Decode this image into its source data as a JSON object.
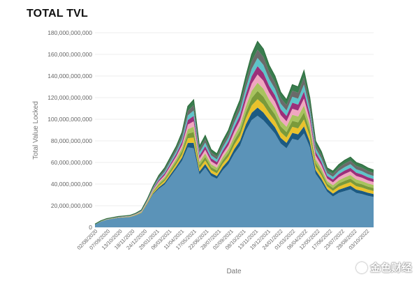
{
  "chart_data": {
    "type": "area",
    "title": "TOTAL TVL",
    "xlabel": "Date",
    "ylabel": "Total Value Locked",
    "ylim": [
      0,
      180000000000
    ],
    "y_ticks": [
      0,
      20000000000,
      40000000000,
      60000000000,
      80000000000,
      100000000000,
      120000000000,
      140000000000,
      160000000000,
      180000000000
    ],
    "y_tick_labels": [
      "0",
      "20,000,000,000",
      "40,000,000,000",
      "60,000,000,000",
      "80,000,000,000",
      "100,000,000,000",
      "120,000,000,000",
      "140,000,000,000",
      "160,000,000,000",
      "180,000,000,000"
    ],
    "x_tick_labels": [
      "02/08/2020",
      "07/09/2020",
      "13/10/2020",
      "18/11/2020",
      "24/12/2020",
      "29/01/2021",
      "06/03/2021",
      "11/04/2021",
      "17/05/2021",
      "22/06/2021",
      "28/07/2021",
      "02/09/2021",
      "08/10/2021",
      "13/11/2021",
      "19/12/2021",
      "24/01/2022",
      "01/03/2022",
      "06/04/2022",
      "12/05/2022",
      "17/06/2022",
      "23/07/2022",
      "28/08/2022",
      "03/10/2022"
    ],
    "grid": true,
    "legend": "none",
    "stack_colors": [
      "#5b93b8",
      "#1c5a82",
      "#e9c22c",
      "#7a9a3a",
      "#a8c35e",
      "#f0a7c0",
      "#9c2f7a",
      "#5ec4c9",
      "#6a6a6a",
      "#3a7d4f"
    ],
    "x": [
      "02/08/2020",
      "20/08/2020",
      "07/09/2020",
      "25/09/2020",
      "13/10/2020",
      "31/10/2020",
      "18/11/2020",
      "06/12/2020",
      "24/12/2020",
      "11/01/2021",
      "29/01/2021",
      "16/02/2021",
      "06/03/2021",
      "24/03/2021",
      "11/04/2021",
      "29/04/2021",
      "08/05/2021",
      "17/05/2021",
      "26/05/2021",
      "04/06/2021",
      "22/06/2021",
      "10/07/2021",
      "28/07/2021",
      "15/08/2021",
      "02/09/2021",
      "20/09/2021",
      "08/10/2021",
      "26/10/2021",
      "13/11/2021",
      "01/12/2021",
      "19/12/2021",
      "06/01/2022",
      "24/01/2022",
      "11/02/2022",
      "01/03/2022",
      "19/03/2022",
      "06/04/2022",
      "24/04/2022",
      "12/05/2022",
      "30/05/2022",
      "17/06/2022",
      "05/07/2022",
      "23/07/2022",
      "10/08/2022",
      "28/08/2022",
      "15/09/2022",
      "03/10/2022",
      "21/10/2022",
      "31/10/2022"
    ],
    "total_values": [
      3000000000,
      6000000000,
      8000000000,
      9000000000,
      10000000000,
      10500000000,
      11000000000,
      13000000000,
      16000000000,
      26000000000,
      38000000000,
      48000000000,
      55000000000,
      65000000000,
      75000000000,
      88000000000,
      112000000000,
      118000000000,
      75000000000,
      85000000000,
      72000000000,
      68000000000,
      80000000000,
      90000000000,
      105000000000,
      118000000000,
      140000000000,
      160000000000,
      172000000000,
      165000000000,
      150000000000,
      140000000000,
      125000000000,
      118000000000,
      132000000000,
      130000000000,
      145000000000,
      120000000000,
      80000000000,
      70000000000,
      55000000000,
      52000000000,
      58000000000,
      62000000000,
      65000000000,
      60000000000,
      58000000000,
      55000000000,
      53000000000
    ],
    "base_share": [
      0.85,
      0.86,
      0.86,
      0.86,
      0.86,
      0.86,
      0.86,
      0.84,
      0.82,
      0.82,
      0.8,
      0.74,
      0.72,
      0.72,
      0.72,
      0.7,
      0.66,
      0.62,
      0.65,
      0.65,
      0.66,
      0.66,
      0.66,
      0.65,
      0.65,
      0.64,
      0.64,
      0.62,
      0.6,
      0.6,
      0.62,
      0.62,
      0.62,
      0.62,
      0.62,
      0.62,
      0.6,
      0.62,
      0.62,
      0.6,
      0.6,
      0.55,
      0.55,
      0.54,
      0.54,
      0.53,
      0.53,
      0.53,
      0.53
    ]
  },
  "watermark": {
    "text": "金色财经"
  }
}
